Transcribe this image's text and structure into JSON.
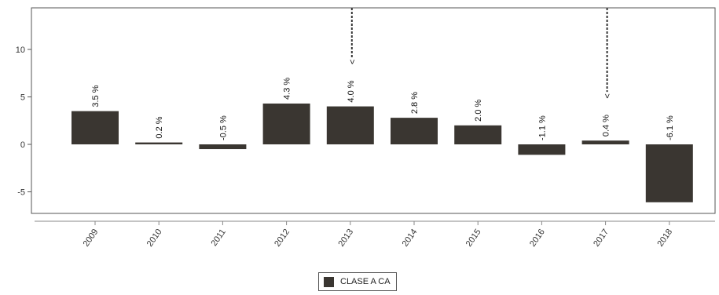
{
  "chart_data": {
    "type": "bar",
    "categories": [
      "2009",
      "2010",
      "2011",
      "2012",
      "2013",
      "2014",
      "2015",
      "2016",
      "2017",
      "2018"
    ],
    "series": [
      {
        "name": "CLASE A CA",
        "values": [
          3.5,
          0.2,
          -0.5,
          4.3,
          4.0,
          2.8,
          2.0,
          -1.1,
          0.4,
          -6.1
        ],
        "labels": [
          "3.5 %",
          "0.2 %",
          "-0.5 %",
          "4.3 %",
          "4.0 %",
          "2.8 %",
          "2.0 %",
          "-1.1 %",
          "0.4 %",
          "-6.1 %"
        ],
        "color": "#3a3631"
      }
    ],
    "markers": [
      {
        "category": "2013",
        "symbol": "<"
      },
      {
        "category": "2017",
        "symbol": "<"
      }
    ],
    "ylim": [
      -7,
      14
    ],
    "yticks": [
      -5,
      0,
      5,
      10
    ],
    "grid": false,
    "legend_position": "bottom"
  }
}
